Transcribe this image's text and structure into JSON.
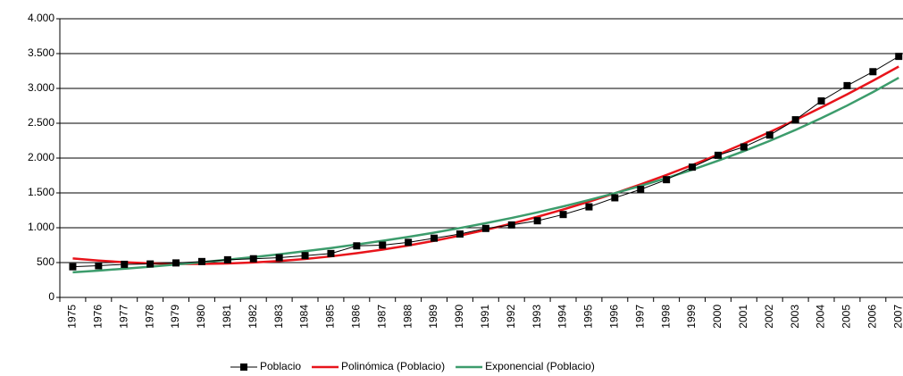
{
  "chart_data": {
    "type": "line",
    "categories": [
      "1975",
      "1976",
      "1977",
      "1978",
      "1979",
      "1980",
      "1981",
      "1982",
      "1983",
      "1984",
      "1985",
      "1986",
      "1987",
      "1988",
      "1989",
      "1990",
      "1991",
      "1992",
      "1993",
      "1994",
      "1995",
      "1996",
      "1997",
      "1998",
      "1999",
      "2000",
      "2001",
      "2002",
      "2003",
      "2004",
      "2005",
      "2006",
      "2007"
    ],
    "series": [
      {
        "name": "Poblacio",
        "color": "#000000",
        "marker": "square",
        "values": [
          440,
          455,
          475,
          480,
          495,
          515,
          540,
          555,
          570,
          600,
          630,
          740,
          750,
          790,
          850,
          910,
          990,
          1040,
          1100,
          1190,
          1300,
          1430,
          1550,
          1690,
          1870,
          2040,
          2160,
          2330,
          2550,
          2820,
          3040,
          3240,
          3460
        ]
      },
      {
        "name": "Polinómica (Poblacio)",
        "color": "#e8141b",
        "values": [
          560,
          529,
          505,
          489,
          481,
          480,
          487,
          501,
          523,
          552,
          589,
          634,
          686,
          745,
          812,
          887,
          969,
          1059,
          1157,
          1262,
          1374,
          1494,
          1622,
          1757,
          1900,
          2050,
          2208,
          2373,
          2546,
          2727,
          2915,
          3111,
          3314
        ]
      },
      {
        "name": "Exponencial (Poblacio)",
        "color": "#3c9c6c",
        "values": [
          360,
          385,
          412,
          441,
          472,
          505,
          541,
          579,
          619,
          663,
          709,
          759,
          812,
          869,
          930,
          996,
          1066,
          1140,
          1220,
          1306,
          1398,
          1496,
          1601,
          1713,
          1833,
          1962,
          2100,
          2247,
          2404,
          2573,
          2754,
          2947,
          3153
        ]
      }
    ],
    "ylim": [
      0,
      4000
    ],
    "yticks": [
      0,
      500,
      {
        "value": 1000,
        "label": "1.000"
      },
      {
        "value": 1500,
        "label": "1.500"
      },
      {
        "value": 2000,
        "label": "2.000"
      },
      {
        "value": 2500,
        "label": "2.500"
      },
      {
        "value": 3000,
        "label": "3.000"
      },
      {
        "value": 3500,
        "label": "3.500"
      },
      {
        "value": 4000,
        "label": "4.000"
      }
    ],
    "grid": true,
    "legend": "bottom"
  }
}
